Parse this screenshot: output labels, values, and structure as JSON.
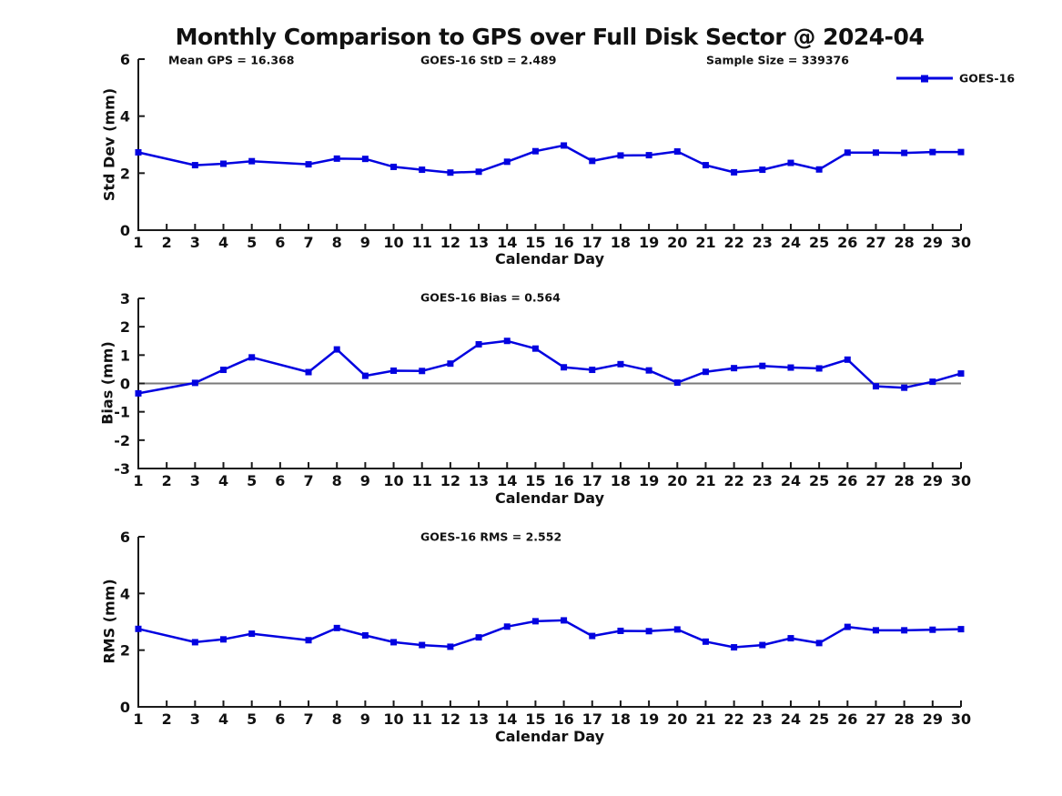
{
  "title": "Monthly Comparison to GPS over Full Disk Sector @ 2024-04",
  "legend": {
    "label": "GOES-16"
  },
  "colors": {
    "line": "#0202e0",
    "axis": "#1a1a1a",
    "zero_line": "#7a7a7a",
    "text": "#111111",
    "background": "#ffffff"
  },
  "chart_data": [
    {
      "id": "std-dev",
      "type": "line",
      "title": "Monthly Comparison to GPS over Full Disk Sector @ 2024-04",
      "annotations": [
        "Mean GPS = 16.368",
        "GOES-16 StD = 2.489",
        "Sample Size = 339376"
      ],
      "xlabel": "Calendar Day",
      "ylabel": "Std Dev (mm)",
      "xlim": [
        1,
        30
      ],
      "ylim": [
        0,
        6
      ],
      "xticks": [
        1,
        2,
        3,
        4,
        5,
        6,
        7,
        8,
        9,
        10,
        11,
        12,
        13,
        14,
        15,
        16,
        17,
        18,
        19,
        20,
        21,
        22,
        23,
        24,
        25,
        26,
        27,
        28,
        29,
        30
      ],
      "yticks": [
        0,
        2,
        4,
        6
      ],
      "grid": false,
      "legend_position": "upper-right-above",
      "zero_line": false,
      "series": [
        {
          "name": "GOES-16",
          "x": [
            1,
            3,
            4,
            5,
            7,
            8,
            9,
            10,
            11,
            12,
            13,
            14,
            15,
            16,
            17,
            18,
            19,
            20,
            21,
            22,
            23,
            24,
            25,
            26,
            27,
            28,
            29,
            30
          ],
          "values": [
            2.73,
            2.28,
            2.33,
            2.42,
            2.31,
            2.51,
            2.5,
            2.22,
            2.12,
            2.02,
            2.05,
            2.4,
            2.77,
            2.97,
            2.43,
            2.62,
            2.63,
            2.76,
            2.28,
            2.03,
            2.12,
            2.36,
            2.13,
            2.72,
            2.72,
            2.71,
            2.74,
            2.74
          ]
        }
      ]
    },
    {
      "id": "bias",
      "type": "line",
      "annotations": [
        "GOES-16 Bias = 0.564"
      ],
      "xlabel": "Calendar Day",
      "ylabel": "Bias (mm)",
      "xlim": [
        1,
        30
      ],
      "ylim": [
        -3,
        3
      ],
      "xticks": [
        1,
        2,
        3,
        4,
        5,
        6,
        7,
        8,
        9,
        10,
        11,
        12,
        13,
        14,
        15,
        16,
        17,
        18,
        19,
        20,
        21,
        22,
        23,
        24,
        25,
        26,
        27,
        28,
        29,
        30
      ],
      "yticks": [
        -3,
        -2,
        -1,
        0,
        1,
        2,
        3
      ],
      "grid": false,
      "zero_line": true,
      "series": [
        {
          "name": "GOES-16",
          "x": [
            1,
            3,
            4,
            5,
            7,
            8,
            9,
            10,
            11,
            12,
            13,
            14,
            15,
            16,
            17,
            18,
            19,
            20,
            21,
            22,
            23,
            24,
            25,
            26,
            27,
            28,
            29,
            30
          ],
          "values": [
            -0.35,
            0.02,
            0.48,
            0.92,
            0.4,
            1.2,
            0.27,
            0.45,
            0.44,
            0.7,
            1.38,
            1.5,
            1.23,
            0.57,
            0.48,
            0.68,
            0.46,
            0.03,
            0.41,
            0.54,
            0.62,
            0.56,
            0.53,
            0.84,
            -0.1,
            -0.15,
            0.06,
            0.35
          ]
        }
      ]
    },
    {
      "id": "rms",
      "type": "line",
      "annotations": [
        "GOES-16 RMS = 2.552"
      ],
      "xlabel": "Calendar Day",
      "ylabel": "RMS (mm)",
      "xlim": [
        1,
        30
      ],
      "ylim": [
        0,
        6
      ],
      "xticks": [
        1,
        2,
        3,
        4,
        5,
        6,
        7,
        8,
        9,
        10,
        11,
        12,
        13,
        14,
        15,
        16,
        17,
        18,
        19,
        20,
        21,
        22,
        23,
        24,
        25,
        26,
        27,
        28,
        29,
        30
      ],
      "yticks": [
        0,
        2,
        4,
        6
      ],
      "grid": false,
      "zero_line": false,
      "series": [
        {
          "name": "GOES-16",
          "x": [
            1,
            3,
            4,
            5,
            7,
            8,
            9,
            10,
            11,
            12,
            13,
            14,
            15,
            16,
            17,
            18,
            19,
            20,
            21,
            22,
            23,
            24,
            25,
            26,
            27,
            28,
            29,
            30
          ],
          "values": [
            2.75,
            2.28,
            2.38,
            2.58,
            2.35,
            2.78,
            2.52,
            2.28,
            2.18,
            2.12,
            2.45,
            2.83,
            3.02,
            3.05,
            2.5,
            2.68,
            2.67,
            2.73,
            2.3,
            2.1,
            2.18,
            2.42,
            2.25,
            2.82,
            2.7,
            2.7,
            2.72,
            2.74
          ]
        }
      ]
    }
  ]
}
